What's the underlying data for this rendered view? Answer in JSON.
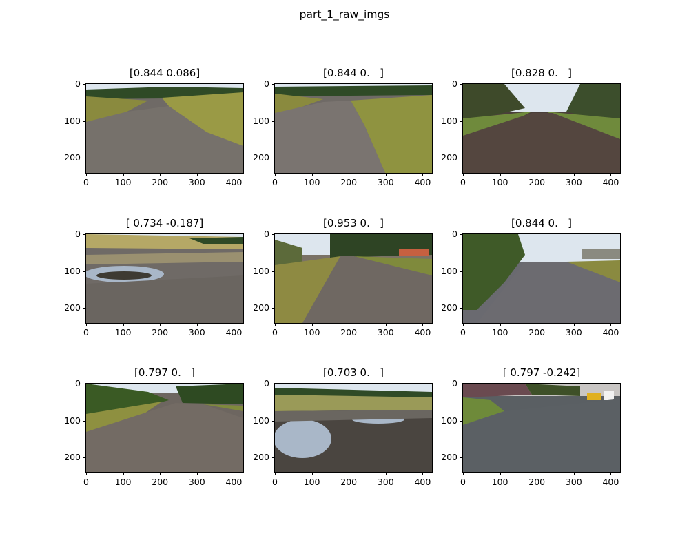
{
  "figure": {
    "title": "part_1_raw_imgs"
  },
  "axis": {
    "y_ticks": [
      "0",
      "100",
      "200"
    ],
    "x_ticks": [
      "0",
      "100",
      "200",
      "300",
      "400"
    ]
  },
  "panels": [
    {
      "title": "[0.844 0.086]",
      "scene": "gravel-road-curve"
    },
    {
      "title": "[0.844 0.   ]",
      "scene": "gravel-road-grass-right"
    },
    {
      "title": "[0.828 0.   ]",
      "scene": "dirt-track-trees"
    },
    {
      "title": "[ 0.734 -0.187]",
      "scene": "gravel-puddle-left"
    },
    {
      "title": "[0.953 0.   ]",
      "scene": "gravel-path-red-building"
    },
    {
      "title": "[0.844 0.   ]",
      "scene": "gravel-path-tall-grass-left"
    },
    {
      "title": "[0.797 0.   ]",
      "scene": "gravel-road-green-hill"
    },
    {
      "title": "[0.703 0.   ]",
      "scene": "gravel-two-puddles"
    },
    {
      "title": "[ 0.797 -0.242]",
      "scene": "asphalt-road-neighborhood"
    }
  ],
  "colors": {
    "sky": "#dde6ee",
    "gravel": "#6f6a66",
    "grass": "#8a8a3e",
    "trees": "#2f4a26",
    "water": "#a9b7c8",
    "asphalt": "#5a5f63"
  }
}
